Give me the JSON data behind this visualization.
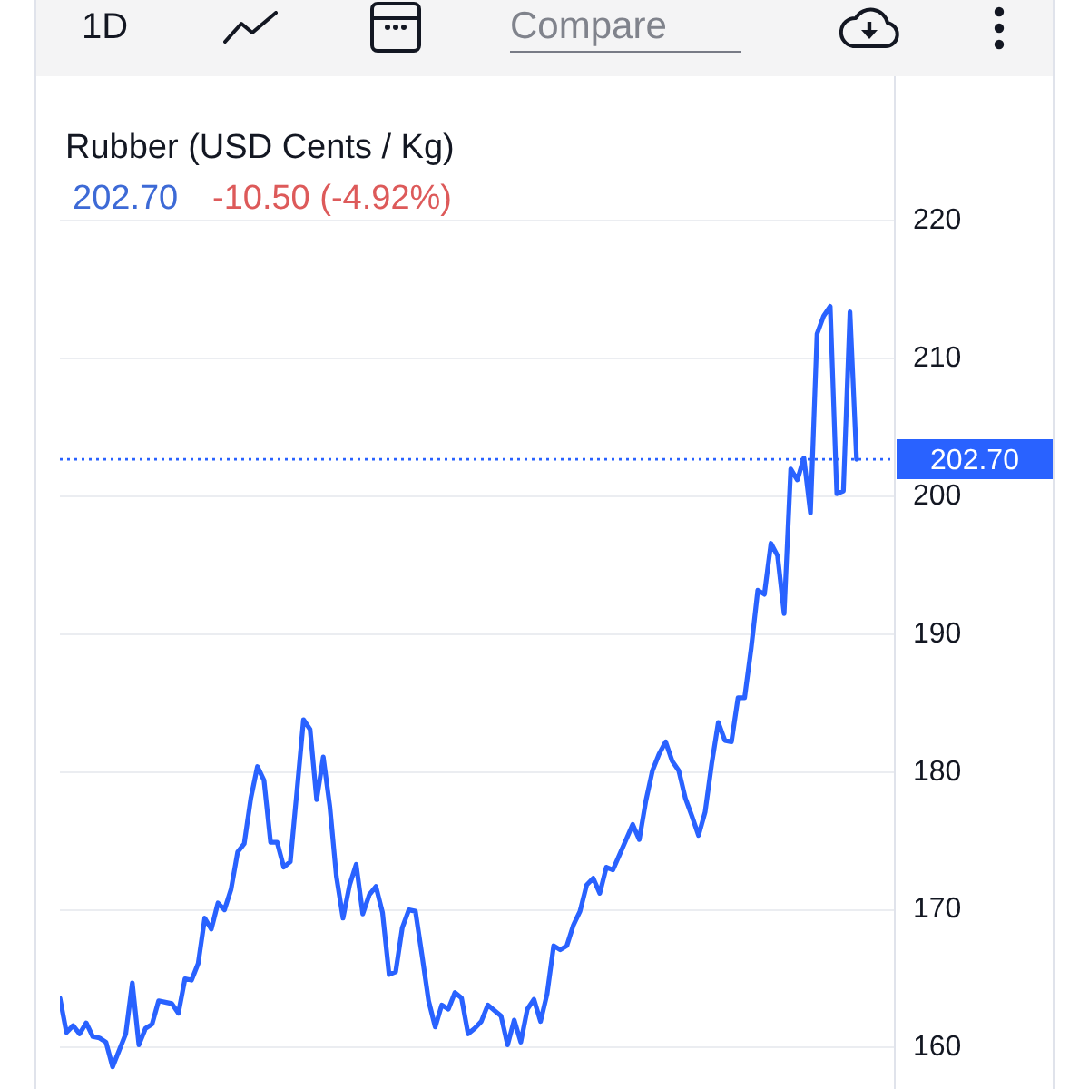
{
  "chart_data": {
    "type": "line",
    "title": "Rubber (USD Cents / Kg)",
    "subtitle": "202.70",
    "annotations": [
      "-10.50 (-4.92%)",
      "1D",
      "Compare"
    ],
    "categories": [
      null,
      null,
      null,
      null,
      null,
      null,
      null,
      null,
      null,
      null,
      null,
      null,
      null,
      null,
      null,
      null,
      null,
      null,
      null,
      null,
      null,
      null,
      null,
      null,
      null,
      null,
      null,
      null,
      null,
      null,
      null,
      null,
      null,
      null,
      null,
      null,
      null,
      null,
      null,
      null,
      null,
      null,
      null,
      null,
      null,
      null,
      null,
      null,
      null,
      null,
      null,
      null,
      null,
      null,
      null,
      null,
      null,
      null,
      null,
      null,
      null,
      null,
      null,
      null,
      null,
      null,
      null,
      null,
      null,
      null,
      null,
      null,
      null,
      null,
      null,
      null,
      null,
      null,
      null,
      null,
      null,
      null,
      null,
      null,
      null,
      null,
      null,
      null,
      null,
      null,
      null,
      null,
      null,
      null,
      null,
      null,
      null,
      null,
      null,
      null,
      null,
      null,
      null,
      null,
      null,
      null,
      null,
      null,
      null,
      null,
      null,
      null,
      null,
      null,
      null,
      null,
      null,
      null,
      null,
      null,
      null,
      null
    ],
    "values": [
      163.6,
      161.1,
      161.6,
      161.0,
      161.8,
      160.8,
      160.7,
      160.4,
      158.6,
      159.8,
      161.0,
      164.7,
      160.2,
      161.4,
      161.7,
      163.4,
      163.3,
      163.2,
      162.5,
      165.0,
      164.9,
      166.1,
      169.4,
      168.6,
      170.5,
      170.0,
      171.5,
      174.2,
      174.8,
      178.1,
      180.4,
      179.4,
      174.9,
      174.9,
      173.1,
      173.5,
      178.6,
      183.8,
      183.1,
      178.0,
      181.1,
      177.5,
      172.4,
      169.4,
      171.8,
      173.3,
      169.7,
      171.1,
      171.7,
      169.8,
      165.3,
      165.5,
      168.7,
      170.0,
      169.9,
      166.7,
      163.4,
      161.5,
      163.1,
      162.8,
      164.0,
      163.6,
      161.0,
      161.4,
      161.9,
      163.1,
      162.7,
      162.3,
      160.2,
      162.0,
      160.4,
      162.8,
      163.5,
      161.9,
      163.9,
      167.4,
      167.1,
      167.4,
      168.9,
      169.9,
      171.8,
      172.3,
      171.2,
      173.1,
      172.9,
      174.0,
      175.1,
      176.2,
      175.1,
      177.9,
      180.1,
      181.3,
      182.2,
      180.8,
      180.1,
      178.1,
      176.8,
      175.4,
      177.1,
      180.6,
      183.6,
      182.3,
      182.2,
      185.4,
      185.4,
      189.0,
      193.2,
      192.9,
      196.6,
      195.7,
      191.5,
      202.0,
      201.2,
      202.8,
      198.8,
      211.8,
      213.1,
      213.8,
      200.2,
      200.4,
      213.4,
      202.7
    ],
    "color": "#2962ff",
    "ylim": [
      157,
      230.5
    ],
    "yticks": [
      160,
      170,
      180,
      190,
      200,
      210,
      220
    ],
    "grid": "y",
    "ref_lines": [
      {
        "axis": "y",
        "value": 202.7,
        "label": "202.70",
        "color": "#2962ff",
        "line_style": "dotted"
      }
    ]
  }
}
